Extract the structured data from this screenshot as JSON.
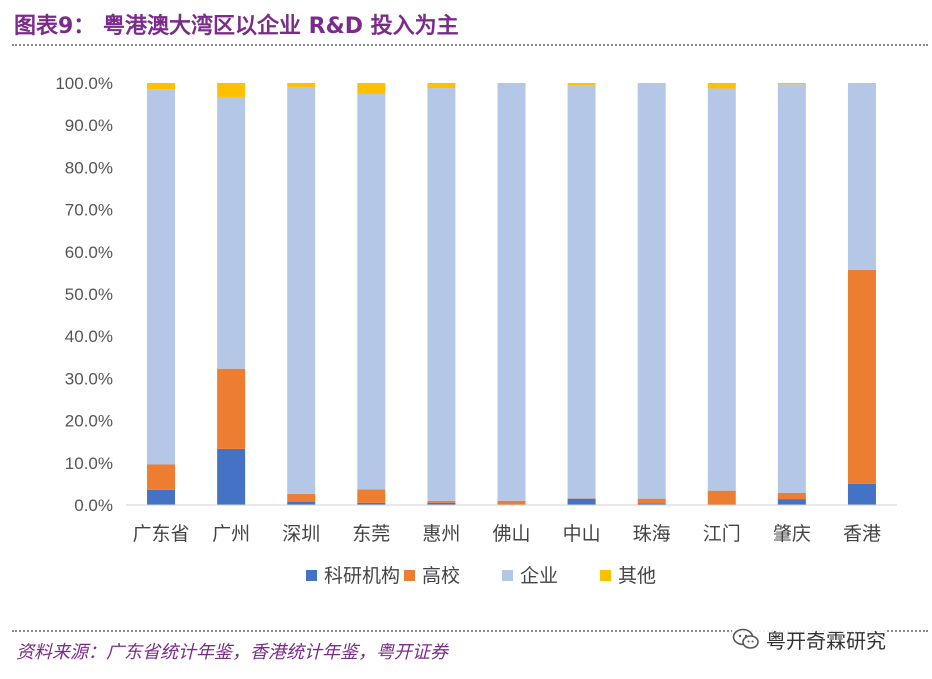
{
  "figure_title": "图表9： 粤港澳大湾区以企业 R&D 投入为主",
  "source": "资料来源：广东省统计年鉴，香港统计年鉴，粤开证券",
  "watermark": "粤开奇霖研究",
  "watermark_icon": "wechat-icon",
  "colors": {
    "research": "#4472c4",
    "university": "#ed7d31",
    "enterprise": "#b4c7e7",
    "other": "#ffc000",
    "title": "#7b2c8a"
  },
  "chart_data": {
    "type": "bar",
    "stacked": true,
    "title": "粤港澳大湾区以企业 R&D 投入为主",
    "xlabel": "",
    "ylabel": "",
    "ylim": [
      0,
      100
    ],
    "y_ticks": [
      "0.0%",
      "10.0%",
      "20.0%",
      "30.0%",
      "40.0%",
      "50.0%",
      "60.0%",
      "70.0%",
      "80.0%",
      "90.0%",
      "100.0%"
    ],
    "grid": false,
    "legend_position": "bottom",
    "categories": [
      "广东省",
      "广州",
      "深圳",
      "东莞",
      "惠州",
      "佛山",
      "中山",
      "珠海",
      "江门",
      "肇庆",
      "香港"
    ],
    "series": [
      {
        "name": "科研机构",
        "color": "#4472c4",
        "values": [
          3.6,
          13.3,
          0.8,
          0.5,
          0.5,
          0.1,
          1.5,
          0.4,
          0.1,
          1.4,
          5.0
        ]
      },
      {
        "name": "高校",
        "color": "#ed7d31",
        "values": [
          6.0,
          19.0,
          1.8,
          3.2,
          0.5,
          0.9,
          0.1,
          1.1,
          3.3,
          1.5,
          50.7
        ]
      },
      {
        "name": "企业",
        "color": "#b4c7e7",
        "values": [
          88.9,
          64.4,
          96.3,
          93.7,
          97.8,
          98.8,
          97.9,
          98.3,
          95.3,
          96.8,
          44.3
        ]
      },
      {
        "name": "其他",
        "color": "#ffc000",
        "values": [
          1.5,
          3.3,
          1.1,
          2.6,
          1.2,
          0.2,
          0.5,
          0.2,
          1.3,
          0.3,
          0.0
        ]
      }
    ]
  }
}
